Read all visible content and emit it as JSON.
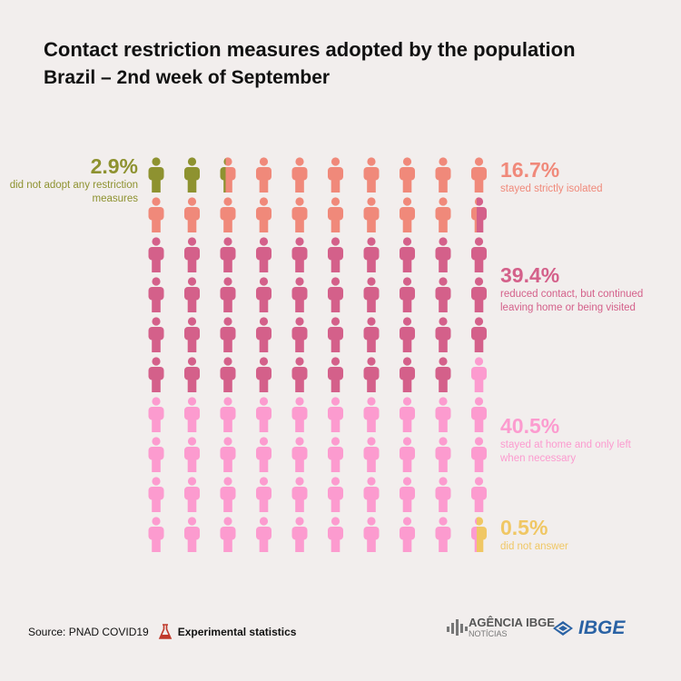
{
  "header": {
    "title": "Contact restriction measures adopted by the population",
    "subtitle": "Brazil – 2nd week of September"
  },
  "chart_data": {
    "type": "pictogram",
    "units_total": 100,
    "columns": 10,
    "rows": 10,
    "series": [
      {
        "name": "did not adopt any restriction measures",
        "pct_label": "2.9%",
        "value": 2.9,
        "color": "#8e9230"
      },
      {
        "name": "stayed strictly isolated",
        "pct_label": "16.7%",
        "value": 16.7,
        "color": "#f0897a"
      },
      {
        "name": "reduced contact, but continued leaving home or being visited",
        "pct_label": "39.4%",
        "value": 39.4,
        "color": "#d4608a"
      },
      {
        "name": "stayed at home and only left when necessary",
        "pct_label": "40.5%",
        "value": 40.5,
        "color": "#fc9bcf"
      },
      {
        "name": "did not answer",
        "pct_label": "0.5%",
        "value": 0.5,
        "color": "#f0c764"
      }
    ]
  },
  "footer": {
    "source": "Source: PNAD COVID19",
    "experimental": "Experimental statistics",
    "agency_name": "AGÊNCIA IBGE",
    "agency_sub": "NOTÍCIAS",
    "ibge": "IBGE"
  },
  "icons": {
    "person": "person-icon",
    "flask": "flask-icon",
    "agency_logo": "agencia-ibge-logo-icon",
    "ibge_logo": "ibge-logo-icon"
  }
}
